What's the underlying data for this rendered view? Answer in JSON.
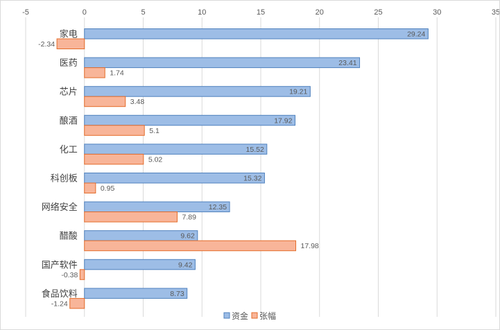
{
  "chart_data": {
    "type": "bar",
    "orientation": "horizontal",
    "categories": [
      "家电",
      "医药",
      "芯片",
      "酿酒",
      "化工",
      "科创板",
      "网络安全",
      "醋酸",
      "国产软件",
      "食品饮料"
    ],
    "series": [
      {
        "name": "资金",
        "values": [
          29.24,
          23.41,
          19.21,
          17.92,
          15.52,
          15.32,
          12.35,
          9.62,
          9.42,
          8.73
        ]
      },
      {
        "name": "张幅",
        "values": [
          -2.34,
          1.74,
          3.48,
          5.1,
          5.02,
          0.95,
          7.89,
          17.98,
          -0.38,
          -1.24
        ]
      }
    ],
    "x_ticks": [
      -5,
      0,
      5,
      10,
      15,
      20,
      25,
      30,
      35
    ],
    "xlim": [
      -5,
      35
    ],
    "x_axis_position": "top",
    "grid": true,
    "legend": "bottom",
    "colors": {
      "资金": "#9dbde6",
      "张幅": "#f8b599",
      "资金_edge": "#4f81bd",
      "张幅_edge": "#e46c2a"
    }
  }
}
